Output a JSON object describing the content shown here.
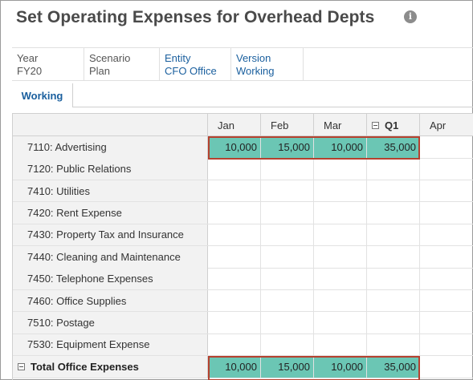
{
  "page": {
    "title": "Set Operating Expenses for Overhead Depts",
    "info_icon": "info-icon"
  },
  "pov": [
    {
      "label": "Year",
      "value": "FY20",
      "kind": "static"
    },
    {
      "label": "Scenario",
      "value": "Plan",
      "kind": "static"
    },
    {
      "label": "Entity",
      "value": "CFO Office",
      "kind": "link"
    },
    {
      "label": "Version",
      "value": "Working",
      "kind": "link"
    }
  ],
  "tabs": [
    {
      "label": "Working",
      "selected": true
    }
  ],
  "grid": {
    "columns": [
      {
        "label": "Jan",
        "collapsible": false
      },
      {
        "label": "Feb",
        "collapsible": false
      },
      {
        "label": "Mar",
        "collapsible": false
      },
      {
        "label": "Q1",
        "collapsible": true
      },
      {
        "label": "Apr",
        "collapsible": false
      }
    ],
    "rows": [
      {
        "label": "7110: Advertising",
        "values": [
          "10,000",
          "15,000",
          "10,000",
          "35,000",
          ""
        ]
      },
      {
        "label": "7120: Public Relations",
        "values": [
          "",
          "",
          "",
          "",
          ""
        ]
      },
      {
        "label": "7410: Utilities",
        "values": [
          "",
          "",
          "",
          "",
          ""
        ]
      },
      {
        "label": "7420: Rent Expense",
        "values": [
          "",
          "",
          "",
          "",
          ""
        ]
      },
      {
        "label": "7430: Property Tax and Insurance",
        "values": [
          "",
          "",
          "",
          "",
          ""
        ]
      },
      {
        "label": "7440: Cleaning and Maintenance",
        "values": [
          "",
          "",
          "",
          "",
          ""
        ]
      },
      {
        "label": "7450: Telephone Expenses",
        "values": [
          "",
          "",
          "",
          "",
          ""
        ]
      },
      {
        "label": "7460: Office Supplies",
        "values": [
          "",
          "",
          "",
          "",
          ""
        ]
      },
      {
        "label": "7510: Postage",
        "values": [
          "",
          "",
          "",
          "",
          ""
        ]
      },
      {
        "label": "7530: Equipment Expense",
        "values": [
          "",
          "",
          "",
          "",
          ""
        ]
      }
    ],
    "total": {
      "label": "Total Office Expenses",
      "values": [
        "10,000",
        "15,000",
        "10,000",
        "35,000",
        ""
      ]
    },
    "colors": {
      "filled_cell": "#6bc6b4",
      "highlight_border": "#b5412f"
    }
  }
}
